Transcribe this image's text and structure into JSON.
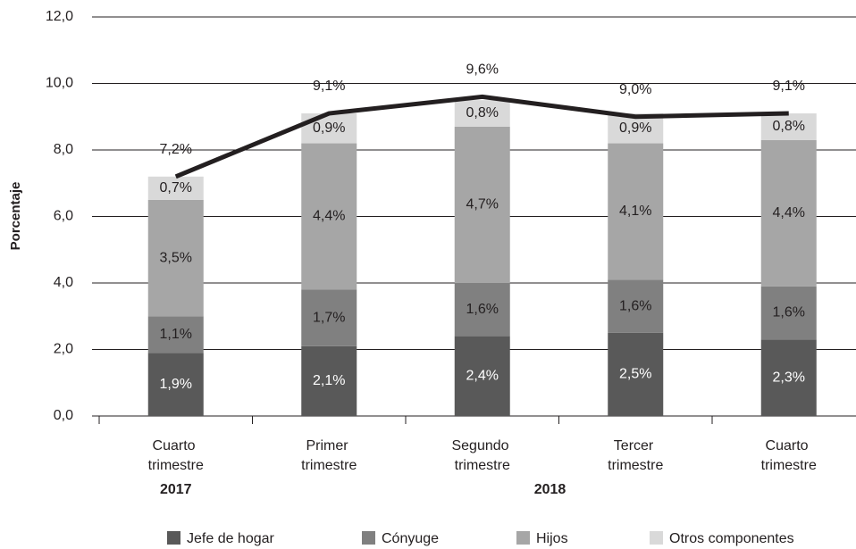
{
  "chart_data": {
    "type": "stacked-bar-line",
    "ylabel": "Porcentaje",
    "categories": [
      "Cuarto trimestre",
      "Primer trimestre",
      "Segundo trimestre",
      "Tercer trimestre",
      "Cuarto trimestre"
    ],
    "year_labels": [
      "2017",
      "2018"
    ],
    "ylim": [
      0,
      12
    ],
    "yticks": [
      {
        "value": 0,
        "label": "0,0"
      },
      {
        "value": 2,
        "label": "2,0"
      },
      {
        "value": 4,
        "label": "4,0"
      },
      {
        "value": 6,
        "label": "6,0"
      },
      {
        "value": 8,
        "label": "8,0"
      },
      {
        "value": 10,
        "label": "10,0"
      },
      {
        "value": 12,
        "label": "12,0"
      }
    ],
    "grid": true,
    "series": [
      {
        "name": "Jefe de hogar",
        "color": "#595959",
        "values": [
          1.9,
          2.1,
          2.4,
          2.5,
          2.3
        ],
        "value_labels": [
          "1,9%",
          "2,1%",
          "2,4%",
          "2,5%",
          "2,3%"
        ]
      },
      {
        "name": "Cónyuge",
        "color": "#808080",
        "values": [
          1.1,
          1.7,
          1.6,
          1.6,
          1.6
        ],
        "value_labels": [
          "1,1%",
          "1,7%",
          "1,6%",
          "1,6%",
          "1,6%"
        ]
      },
      {
        "name": "Hijos",
        "color": "#a6a6a6",
        "values": [
          3.5,
          4.4,
          4.7,
          4.1,
          4.4
        ],
        "value_labels": [
          "3,5%",
          "4,4%",
          "4,7%",
          "4,1%",
          "4,4%"
        ]
      },
      {
        "name": "Otros componentes",
        "color": "#d9d9d9",
        "values": [
          0.7,
          0.9,
          0.8,
          0.9,
          0.8
        ],
        "value_labels": [
          "0,7%",
          "0,9%",
          "0,8%",
          "0,9%",
          "0,8%"
        ]
      }
    ],
    "total": {
      "color": "#231f20",
      "values": [
        7.2,
        9.1,
        9.6,
        9.0,
        9.1
      ],
      "value_labels": [
        "7,2%",
        "9,1%",
        "9,6%",
        "9,0%",
        "9,1%"
      ]
    }
  }
}
